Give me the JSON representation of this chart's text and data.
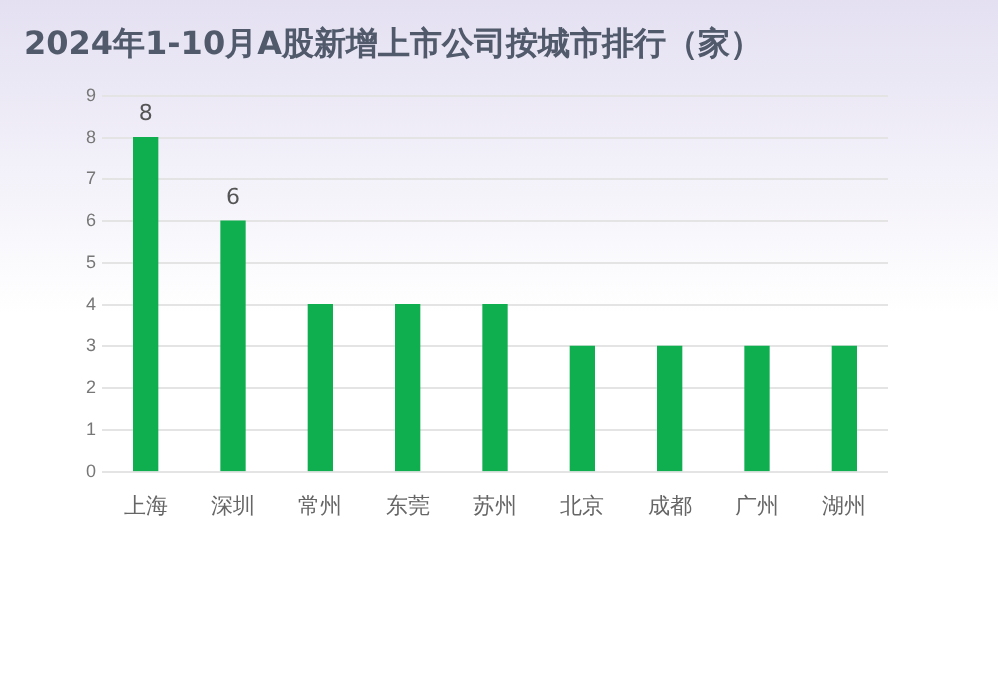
{
  "chart_data": {
    "type": "bar",
    "title": "2024年1-10月A股新增上市公司按城市排行（家）",
    "categories": [
      "上海",
      "深圳",
      "常州",
      "东莞",
      "苏州",
      "北京",
      "成都",
      "广州",
      "湖州"
    ],
    "values": [
      8,
      6,
      4,
      4,
      4,
      3,
      3,
      3,
      3
    ],
    "value_labels": [
      "8",
      "6",
      null,
      null,
      null,
      null,
      null,
      null,
      null
    ],
    "color": "#0fae4f",
    "ylim": [
      0,
      9
    ],
    "yticks": [
      0,
      1,
      2,
      3,
      4,
      5,
      6,
      7,
      8,
      9
    ],
    "grid": "y",
    "legend": false
  }
}
